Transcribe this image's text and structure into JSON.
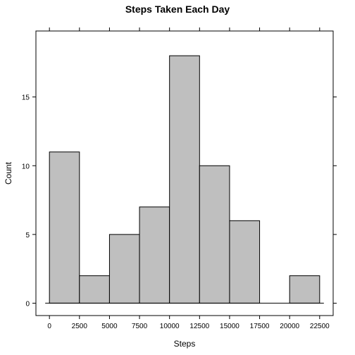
{
  "chart_data": {
    "type": "bar",
    "title": "Steps Taken Each Day",
    "xlabel": "Steps",
    "ylabel": "Count",
    "bin_edges": [
      0,
      2500,
      5000,
      7500,
      10000,
      12500,
      15000,
      17500,
      20000,
      22500
    ],
    "values": [
      11,
      2,
      5,
      7,
      18,
      10,
      6,
      0,
      2
    ],
    "xlim": [
      -1125,
      23625
    ],
    "ylim": [
      -0.9,
      19.8
    ],
    "x_ticks": [
      "0",
      "2500",
      "5000",
      "7500",
      "10000",
      "12500",
      "15000",
      "17500",
      "20000",
      "22500"
    ],
    "y_ticks": [
      "0",
      "5",
      "10",
      "15"
    ],
    "bar_color": "#bfbfbf",
    "grid": false
  }
}
